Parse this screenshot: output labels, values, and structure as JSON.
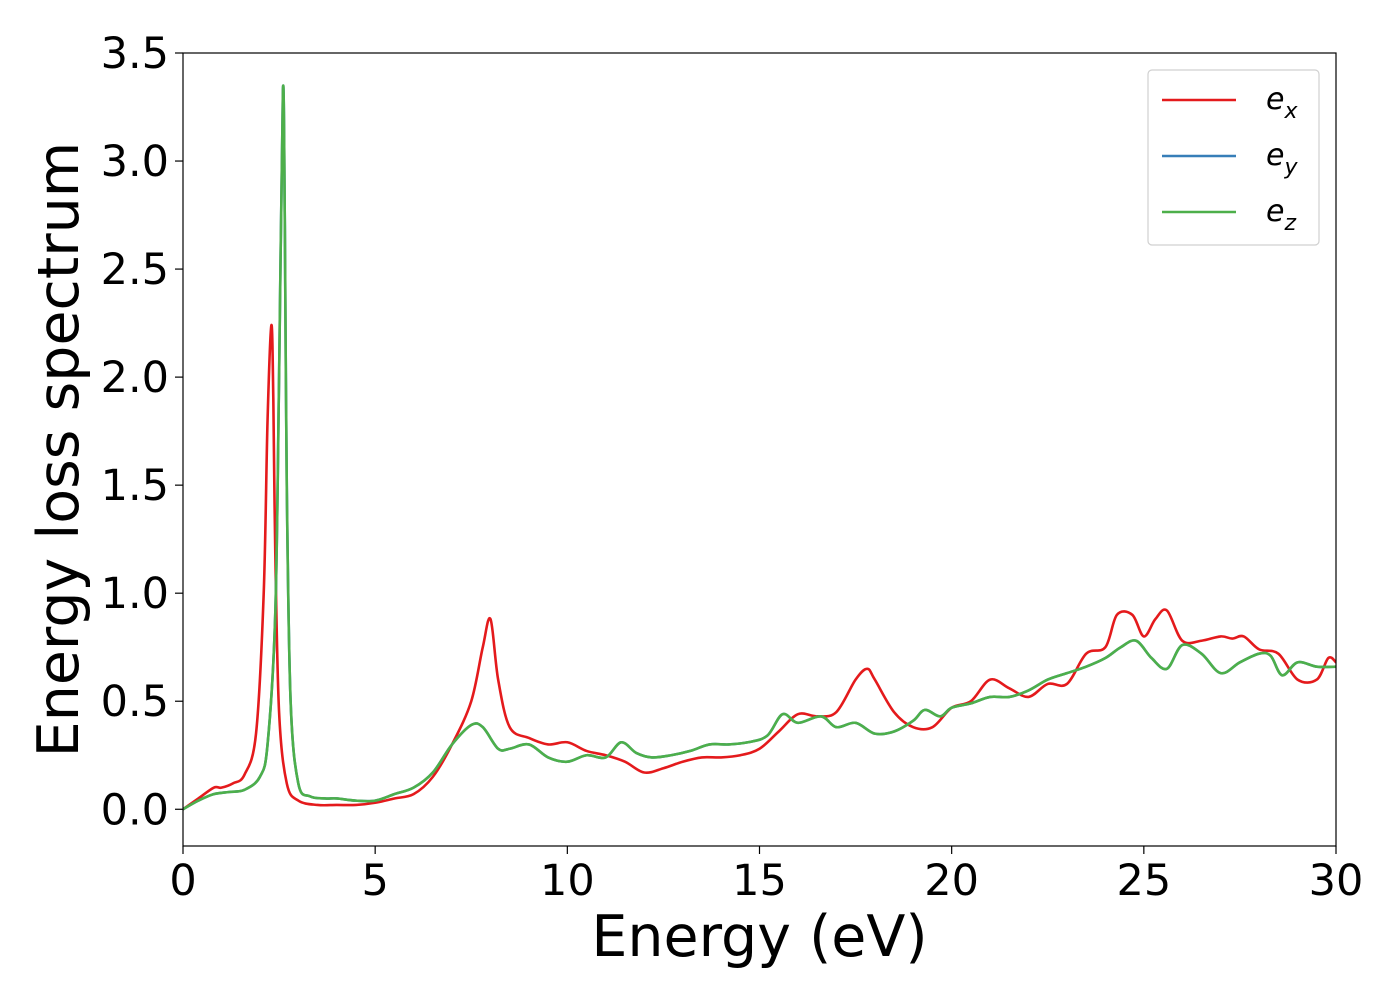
{
  "chart_data": {
    "type": "line",
    "title": "",
    "xlabel": "Energy (eV)",
    "ylabel": "Energy loss spectrum",
    "xlim": [
      0,
      30
    ],
    "ylim": [
      -0.17,
      3.5
    ],
    "xticks": [
      "0",
      "5",
      "10",
      "15",
      "20",
      "25",
      "30"
    ],
    "yticks": [
      "0.0",
      "0.5",
      "1.0",
      "1.5",
      "2.0",
      "2.5",
      "3.0",
      "3.5"
    ],
    "grid": false,
    "legend_position": "top-right",
    "series": [
      {
        "name": "e_x",
        "legend_base": "e",
        "legend_sub": "x",
        "color": "#e41a1c",
        "x": [
          0,
          0.4,
          0.8,
          1.0,
          1.3,
          1.6,
          1.9,
          2.1,
          2.2,
          2.3,
          2.35,
          2.4,
          2.5,
          2.7,
          3.0,
          3.5,
          4.0,
          4.5,
          5.0,
          5.5,
          6.0,
          6.5,
          7.0,
          7.5,
          7.8,
          8.0,
          8.2,
          8.5,
          9.0,
          9.5,
          10.0,
          10.5,
          11.0,
          11.5,
          12.0,
          12.5,
          13.0,
          13.5,
          14.0,
          14.5,
          15.0,
          15.5,
          16.0,
          16.5,
          17.0,
          17.5,
          17.8,
          18.0,
          18.5,
          19.0,
          19.5,
          20.0,
          20.5,
          21.0,
          21.5,
          22.0,
          22.5,
          23.0,
          23.5,
          24.0,
          24.3,
          24.7,
          25.0,
          25.3,
          25.6,
          26.0,
          26.5,
          27.0,
          27.3,
          27.6,
          28.0,
          28.5,
          29.0,
          29.5,
          29.8,
          30.0
        ],
        "y": [
          0.0,
          0.05,
          0.1,
          0.1,
          0.12,
          0.16,
          0.35,
          1.0,
          1.8,
          2.24,
          1.9,
          1.2,
          0.45,
          0.12,
          0.04,
          0.02,
          0.02,
          0.02,
          0.03,
          0.05,
          0.07,
          0.15,
          0.3,
          0.5,
          0.75,
          0.88,
          0.6,
          0.38,
          0.33,
          0.3,
          0.31,
          0.27,
          0.25,
          0.22,
          0.17,
          0.19,
          0.22,
          0.24,
          0.24,
          0.25,
          0.28,
          0.36,
          0.44,
          0.43,
          0.45,
          0.6,
          0.65,
          0.6,
          0.45,
          0.38,
          0.38,
          0.47,
          0.5,
          0.6,
          0.56,
          0.52,
          0.58,
          0.58,
          0.72,
          0.75,
          0.9,
          0.9,
          0.8,
          0.88,
          0.92,
          0.78,
          0.78,
          0.8,
          0.79,
          0.8,
          0.74,
          0.72,
          0.6,
          0.6,
          0.7,
          0.68
        ]
      },
      {
        "name": "e_y",
        "legend_base": "e",
        "legend_sub": "y",
        "color": "#377eb8",
        "x": [
          0,
          0.4,
          0.8,
          1.2,
          1.6,
          2.0,
          2.2,
          2.4,
          2.5,
          2.6,
          2.65,
          2.7,
          2.8,
          3.0,
          3.3,
          3.7,
          4.0,
          4.5,
          5.0,
          5.5,
          6.0,
          6.5,
          7.0,
          7.5,
          7.8,
          8.2,
          8.5,
          9.0,
          9.5,
          10.0,
          10.5,
          11.0,
          11.4,
          11.8,
          12.2,
          12.7,
          13.2,
          13.7,
          14.2,
          14.7,
          15.2,
          15.6,
          16.0,
          16.6,
          17.0,
          17.5,
          18.0,
          18.5,
          19.0,
          19.3,
          19.7,
          20.0,
          20.5,
          21.0,
          21.5,
          22.0,
          22.5,
          23.0,
          23.5,
          24.0,
          24.4,
          24.8,
          25.2,
          25.6,
          26.0,
          26.5,
          27.0,
          27.5,
          28.0,
          28.3,
          28.6,
          29.0,
          29.5,
          30.0
        ],
        "y": [
          0.0,
          0.04,
          0.07,
          0.08,
          0.09,
          0.15,
          0.3,
          0.9,
          2.0,
          3.33,
          2.7,
          1.5,
          0.5,
          0.12,
          0.06,
          0.05,
          0.05,
          0.04,
          0.04,
          0.07,
          0.1,
          0.17,
          0.3,
          0.39,
          0.38,
          0.28,
          0.28,
          0.3,
          0.24,
          0.22,
          0.25,
          0.24,
          0.31,
          0.26,
          0.24,
          0.25,
          0.27,
          0.3,
          0.3,
          0.31,
          0.34,
          0.44,
          0.4,
          0.43,
          0.38,
          0.4,
          0.35,
          0.36,
          0.41,
          0.46,
          0.43,
          0.47,
          0.49,
          0.52,
          0.52,
          0.55,
          0.6,
          0.63,
          0.66,
          0.7,
          0.75,
          0.78,
          0.7,
          0.65,
          0.76,
          0.72,
          0.63,
          0.68,
          0.72,
          0.71,
          0.62,
          0.68,
          0.66,
          0.66
        ]
      },
      {
        "name": "e_z",
        "legend_base": "e",
        "legend_sub": "z",
        "color": "#4daf4a",
        "x": [
          0,
          0.4,
          0.8,
          1.2,
          1.6,
          2.0,
          2.2,
          2.4,
          2.5,
          2.6,
          2.65,
          2.7,
          2.8,
          3.0,
          3.3,
          3.7,
          4.0,
          4.5,
          5.0,
          5.5,
          6.0,
          6.5,
          7.0,
          7.5,
          7.8,
          8.2,
          8.5,
          9.0,
          9.5,
          10.0,
          10.5,
          11.0,
          11.4,
          11.8,
          12.2,
          12.7,
          13.2,
          13.7,
          14.2,
          14.7,
          15.2,
          15.6,
          16.0,
          16.6,
          17.0,
          17.5,
          18.0,
          18.5,
          19.0,
          19.3,
          19.7,
          20.0,
          20.5,
          21.0,
          21.5,
          22.0,
          22.5,
          23.0,
          23.5,
          24.0,
          24.4,
          24.8,
          25.2,
          25.6,
          26.0,
          26.5,
          27.0,
          27.5,
          28.0,
          28.3,
          28.6,
          29.0,
          29.5,
          30.0
        ],
        "y": [
          0.0,
          0.04,
          0.07,
          0.08,
          0.09,
          0.15,
          0.3,
          0.9,
          2.0,
          3.33,
          2.7,
          1.5,
          0.5,
          0.12,
          0.06,
          0.05,
          0.05,
          0.04,
          0.04,
          0.07,
          0.1,
          0.17,
          0.3,
          0.39,
          0.38,
          0.28,
          0.28,
          0.3,
          0.24,
          0.22,
          0.25,
          0.24,
          0.31,
          0.26,
          0.24,
          0.25,
          0.27,
          0.3,
          0.3,
          0.31,
          0.34,
          0.44,
          0.4,
          0.43,
          0.38,
          0.4,
          0.35,
          0.36,
          0.41,
          0.46,
          0.43,
          0.47,
          0.49,
          0.52,
          0.52,
          0.55,
          0.6,
          0.63,
          0.66,
          0.7,
          0.75,
          0.78,
          0.7,
          0.65,
          0.76,
          0.72,
          0.63,
          0.68,
          0.72,
          0.71,
          0.62,
          0.68,
          0.66,
          0.66
        ]
      }
    ]
  }
}
